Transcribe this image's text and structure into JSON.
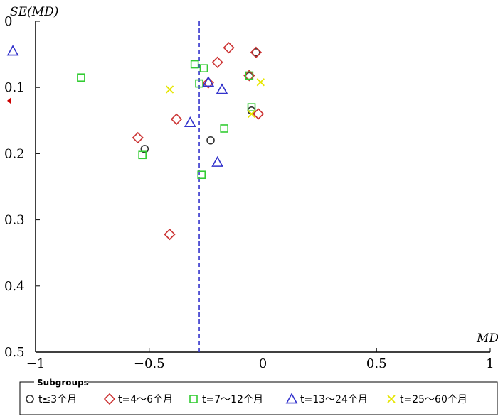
{
  "chart_data": {
    "type": "scatter",
    "title": "",
    "xlabel": "MD",
    "ylabel": "SE(MD)",
    "xlim": [
      -1,
      1
    ],
    "ylim": [
      0,
      0.5
    ],
    "y_reversed": true,
    "x_ticks": [
      -1,
      -0.5,
      0,
      0.5,
      1
    ],
    "x_tick_labels": [
      "−1",
      "−0.5",
      "0",
      "0.5",
      "1"
    ],
    "y_ticks": [
      0,
      0.1,
      0.2,
      0.3,
      0.4,
      0.5
    ],
    "y_tick_labels": [
      "0",
      "0.1",
      "0.2",
      "0.3",
      "0.4",
      "0.5"
    ],
    "reference_line": {
      "x": -0.28,
      "style": "dashed",
      "color": "#3333cc"
    },
    "legend_title": "Subgroups",
    "legend_placement": "bottom",
    "series": [
      {
        "name": "t≤3个月",
        "marker": "circle",
        "color": "#333333",
        "points": [
          [
            -0.03,
            0.047
          ],
          [
            -0.06,
            0.083
          ],
          [
            -0.05,
            0.135
          ],
          [
            -0.23,
            0.18
          ],
          [
            -0.52,
            0.193
          ]
        ]
      },
      {
        "name": "t=4～6个月",
        "marker": "diamond",
        "color": "#cc3333",
        "points": [
          [
            -0.15,
            0.04
          ],
          [
            -0.03,
            0.047
          ],
          [
            -0.2,
            0.062
          ],
          [
            -0.06,
            0.082
          ],
          [
            -0.24,
            0.093
          ],
          [
            -0.02,
            0.14
          ],
          [
            -0.38,
            0.148
          ],
          [
            -0.55,
            0.176
          ],
          [
            -0.41,
            0.322
          ]
        ]
      },
      {
        "name": "t=7～12个月",
        "marker": "square",
        "color": "#33cc33",
        "points": [
          [
            -0.8,
            0.085
          ],
          [
            -0.3,
            0.065
          ],
          [
            -0.26,
            0.071
          ],
          [
            -0.06,
            0.082
          ],
          [
            -0.28,
            0.094
          ],
          [
            -0.05,
            0.13
          ],
          [
            -0.17,
            0.162
          ],
          [
            -0.53,
            0.202
          ],
          [
            -0.27,
            0.232
          ]
        ]
      },
      {
        "name": "t=13～24个月",
        "marker": "triangle",
        "color": "#3333cc",
        "points": [
          [
            -1.1,
            0.045
          ],
          [
            -0.24,
            0.092
          ],
          [
            -0.18,
            0.103
          ],
          [
            -0.32,
            0.153
          ],
          [
            -0.2,
            0.213
          ]
        ]
      },
      {
        "name": "t=25～60个月",
        "marker": "x",
        "color": "#e6e600",
        "points": [
          [
            -0.41,
            0.103
          ],
          [
            -0.01,
            0.092
          ],
          [
            -0.05,
            0.14
          ]
        ]
      }
    ],
    "offscale_marker": {
      "y": 0.12,
      "color": "#cc0000"
    }
  }
}
